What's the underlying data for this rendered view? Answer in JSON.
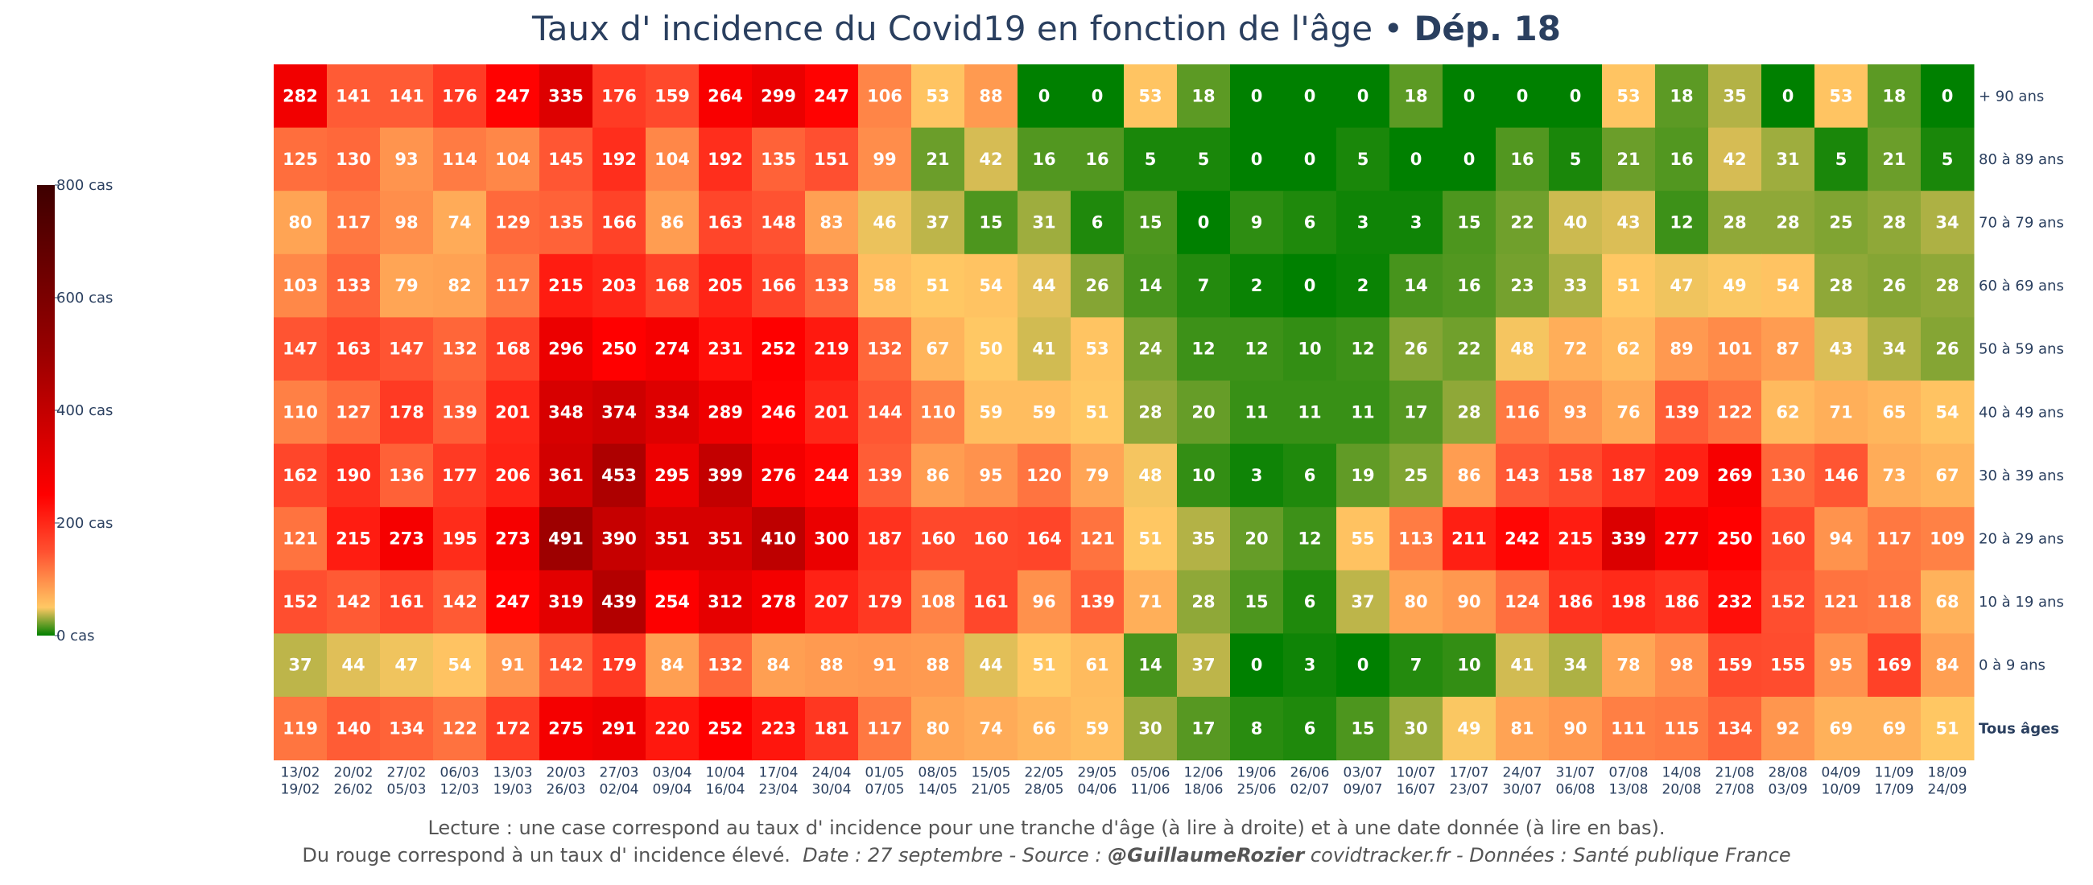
{
  "title": {
    "main": "Taux d' incidence du Covid19 en fonction de l'âge •",
    "bold": "Dép. 18"
  },
  "footer": {
    "line1": "Lecture : une case correspond au taux d' incidence pour une tranche d'âge (à lire à droite) et à une date donnée (à lire en bas).",
    "line2_plain": "Du rouge correspond à un taux d' incidence élevé.",
    "line2_date": "Date : 27 septembre - Source :",
    "line2_author": "@GuillaumeRozier",
    "line2_rest": "covidtracker.fr - Données : Santé publique France"
  },
  "chart_data": {
    "type": "heatmap",
    "title": "Taux d' incidence du Covid19 en fonction de l'âge • Dép. 18",
    "x_labels": [
      [
        "13/02",
        "19/02"
      ],
      [
        "20/02",
        "26/02"
      ],
      [
        "27/02",
        "05/03"
      ],
      [
        "06/03",
        "12/03"
      ],
      [
        "13/03",
        "19/03"
      ],
      [
        "20/03",
        "26/03"
      ],
      [
        "27/03",
        "02/04"
      ],
      [
        "03/04",
        "09/04"
      ],
      [
        "10/04",
        "16/04"
      ],
      [
        "17/04",
        "23/04"
      ],
      [
        "24/04",
        "30/04"
      ],
      [
        "01/05",
        "07/05"
      ],
      [
        "08/05",
        "14/05"
      ],
      [
        "15/05",
        "21/05"
      ],
      [
        "22/05",
        "28/05"
      ],
      [
        "29/05",
        "04/06"
      ],
      [
        "05/06",
        "11/06"
      ],
      [
        "12/06",
        "18/06"
      ],
      [
        "19/06",
        "25/06"
      ],
      [
        "26/06",
        "02/07"
      ],
      [
        "03/07",
        "09/07"
      ],
      [
        "10/07",
        "16/07"
      ],
      [
        "17/07",
        "23/07"
      ],
      [
        "24/07",
        "30/07"
      ],
      [
        "31/07",
        "06/08"
      ],
      [
        "07/08",
        "13/08"
      ],
      [
        "14/08",
        "20/08"
      ],
      [
        "21/08",
        "27/08"
      ],
      [
        "28/08",
        "03/09"
      ],
      [
        "04/09",
        "10/09"
      ],
      [
        "11/09",
        "17/09"
      ],
      [
        "18/09",
        "24/09"
      ]
    ],
    "rows": [
      {
        "label": "+ 90 ans",
        "bold": false,
        "values": [
          282,
          141,
          141,
          176,
          247,
          335,
          176,
          159,
          264,
          299,
          247,
          106,
          53,
          88,
          0,
          0,
          53,
          18,
          0,
          0,
          0,
          18,
          0,
          0,
          0,
          53,
          18,
          35,
          0,
          53,
          18,
          0
        ]
      },
      {
        "label": "80 à 89 ans",
        "bold": false,
        "values": [
          125,
          130,
          93,
          114,
          104,
          145,
          192,
          104,
          192,
          135,
          151,
          99,
          21,
          42,
          16,
          16,
          5,
          5,
          0,
          0,
          5,
          0,
          0,
          16,
          5,
          21,
          16,
          42,
          31,
          5,
          21,
          5
        ]
      },
      {
        "label": "70 à 79 ans",
        "bold": false,
        "values": [
          80,
          117,
          98,
          74,
          129,
          135,
          166,
          86,
          163,
          148,
          83,
          46,
          37,
          15,
          31,
          6,
          15,
          0,
          9,
          6,
          3,
          3,
          15,
          22,
          40,
          43,
          12,
          28,
          28,
          25,
          28,
          34
        ]
      },
      {
        "label": "60 à 69 ans",
        "bold": false,
        "values": [
          103,
          133,
          79,
          82,
          117,
          215,
          203,
          168,
          205,
          166,
          133,
          58,
          51,
          54,
          44,
          26,
          14,
          7,
          2,
          0,
          2,
          14,
          16,
          23,
          33,
          51,
          47,
          49,
          54,
          28,
          26,
          28
        ]
      },
      {
        "label": "50 à 59 ans",
        "bold": false,
        "values": [
          147,
          163,
          147,
          132,
          168,
          296,
          250,
          274,
          231,
          252,
          219,
          132,
          67,
          50,
          41,
          53,
          24,
          12,
          12,
          10,
          12,
          26,
          22,
          48,
          72,
          62,
          89,
          101,
          87,
          43,
          34,
          26
        ]
      },
      {
        "label": "40 à 49 ans",
        "bold": false,
        "values": [
          110,
          127,
          178,
          139,
          201,
          348,
          374,
          334,
          289,
          246,
          201,
          144,
          110,
          59,
          59,
          51,
          28,
          20,
          11,
          11,
          11,
          17,
          28,
          116,
          93,
          76,
          139,
          122,
          62,
          71,
          65,
          54
        ]
      },
      {
        "label": "30 à 39 ans",
        "bold": false,
        "values": [
          162,
          190,
          136,
          177,
          206,
          361,
          453,
          295,
          399,
          276,
          244,
          139,
          86,
          95,
          120,
          79,
          48,
          10,
          3,
          6,
          19,
          25,
          86,
          143,
          158,
          187,
          209,
          269,
          130,
          146,
          73,
          67
        ]
      },
      {
        "label": "20 à 29 ans",
        "bold": false,
        "values": [
          121,
          215,
          273,
          195,
          273,
          491,
          390,
          351,
          351,
          410,
          300,
          187,
          160,
          160,
          164,
          121,
          51,
          35,
          20,
          12,
          55,
          113,
          211,
          242,
          215,
          339,
          277,
          250,
          160,
          94,
          117,
          109
        ]
      },
      {
        "label": "10 à 19 ans",
        "bold": false,
        "values": [
          152,
          142,
          161,
          142,
          247,
          319,
          439,
          254,
          312,
          278,
          207,
          179,
          108,
          161,
          96,
          139,
          71,
          28,
          15,
          6,
          37,
          80,
          90,
          124,
          186,
          198,
          186,
          232,
          152,
          121,
          118,
          68
        ]
      },
      {
        "label": "0 à 9 ans",
        "bold": false,
        "values": [
          37,
          44,
          47,
          54,
          91,
          142,
          179,
          84,
          132,
          84,
          88,
          91,
          88,
          44,
          51,
          61,
          14,
          37,
          0,
          3,
          0,
          7,
          10,
          41,
          34,
          78,
          98,
          159,
          155,
          95,
          169,
          84
        ]
      },
      {
        "label": "Tous âges",
        "bold": true,
        "values": [
          119,
          140,
          134,
          122,
          172,
          275,
          291,
          220,
          252,
          223,
          181,
          117,
          80,
          74,
          66,
          59,
          30,
          17,
          8,
          6,
          15,
          30,
          49,
          81,
          90,
          111,
          115,
          134,
          92,
          69,
          69,
          51
        ]
      }
    ],
    "colorbar": {
      "range": [
        0,
        800
      ],
      "ticks": [
        {
          "value": 800,
          "label": "800 cas"
        },
        {
          "value": 600,
          "label": "600 cas"
        },
        {
          "value": 400,
          "label": "400 cas"
        },
        {
          "value": 200,
          "label": "200 cas"
        },
        {
          "value": 0,
          "label": "0 cas"
        }
      ],
      "colorscale": [
        {
          "v": 0,
          "color": "#008000"
        },
        {
          "v": 50,
          "color": "#ffc864"
        },
        {
          "v": 150,
          "color": "#ff5030"
        },
        {
          "v": 250,
          "color": "#ff0000"
        },
        {
          "v": 500,
          "color": "#9a0000"
        },
        {
          "v": 800,
          "color": "#3e0000"
        }
      ]
    }
  }
}
